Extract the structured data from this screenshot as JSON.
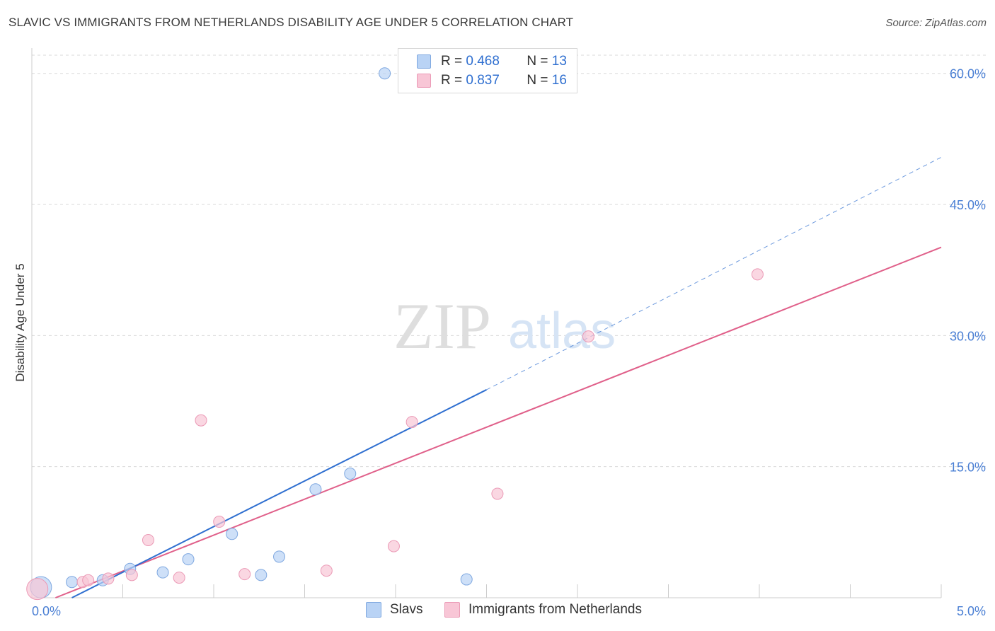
{
  "title": "SLAVIC VS IMMIGRANTS FROM NETHERLANDS DISABILITY AGE UNDER 5 CORRELATION CHART",
  "source": "Source: ZipAtlas.com",
  "watermark": {
    "zip": "ZIP",
    "atlas": "atlas"
  },
  "legend": {
    "slavs": {
      "r_label": "R =",
      "r_value": "0.468",
      "n_label": "N =",
      "n_value": "13"
    },
    "netherlands": {
      "r_label": "R =",
      "r_value": "0.837",
      "n_label": "N =",
      "n_value": "16"
    }
  },
  "bottom_legend": {
    "slavs": "Slavs",
    "netherlands": "Immigrants from Netherlands"
  },
  "colors": {
    "slavs_fill": "#b9d3f5",
    "slavs_stroke": "#7fa8e0",
    "slavs_line": "#2f6fd0",
    "nl_fill": "#f8c6d6",
    "nl_stroke": "#eb9ab6",
    "nl_line": "#e0608a",
    "tick": "#4a7fd4",
    "grid": "#d9d9d9"
  },
  "chart_data": {
    "type": "scatter",
    "title": "SLAVIC VS IMMIGRANTS FROM NETHERLANDS DISABILITY AGE UNDER 5 CORRELATION CHART",
    "xlabel": "",
    "ylabel": "Disability Age Under 5",
    "xlim": [
      0,
      5
    ],
    "ylim": [
      0,
      62
    ],
    "x_tick_labels": [
      "0.0%",
      "5.0%"
    ],
    "y_ticks": [
      15,
      30,
      45,
      60
    ],
    "y_tick_labels": [
      "15.0%",
      "30.0%",
      "45.0%",
      "60.0%"
    ],
    "series": [
      {
        "name": "Slavs",
        "points": [
          {
            "x": 0.05,
            "y": 1.2,
            "big": true
          },
          {
            "x": 0.22,
            "y": 1.8
          },
          {
            "x": 0.39,
            "y": 2.0
          },
          {
            "x": 0.54,
            "y": 3.3
          },
          {
            "x": 0.72,
            "y": 2.9
          },
          {
            "x": 0.86,
            "y": 4.4
          },
          {
            "x": 1.1,
            "y": 7.3
          },
          {
            "x": 1.26,
            "y": 2.6
          },
          {
            "x": 1.36,
            "y": 4.7
          },
          {
            "x": 1.56,
            "y": 12.4
          },
          {
            "x": 1.75,
            "y": 14.2
          },
          {
            "x": 1.94,
            "y": 60.0
          },
          {
            "x": 2.39,
            "y": 2.1
          }
        ],
        "trend": {
          "x0": 0.22,
          "y0": 0.0,
          "x1": 2.5,
          "y1": 23.8,
          "dash_to_x": 5.0,
          "dash_to_y": 50.4
        }
      },
      {
        "name": "Immigrants from Netherlands",
        "points": [
          {
            "x": 0.03,
            "y": 1.0,
            "big": true
          },
          {
            "x": 0.28,
            "y": 1.8
          },
          {
            "x": 0.31,
            "y": 2.0
          },
          {
            "x": 0.42,
            "y": 2.2
          },
          {
            "x": 0.55,
            "y": 2.6
          },
          {
            "x": 0.64,
            "y": 6.6
          },
          {
            "x": 0.81,
            "y": 2.3
          },
          {
            "x": 0.93,
            "y": 20.3
          },
          {
            "x": 1.03,
            "y": 8.7
          },
          {
            "x": 1.17,
            "y": 2.7
          },
          {
            "x": 1.62,
            "y": 3.1
          },
          {
            "x": 1.99,
            "y": 5.9
          },
          {
            "x": 2.09,
            "y": 20.1
          },
          {
            "x": 2.56,
            "y": 11.9
          },
          {
            "x": 3.06,
            "y": 29.9
          },
          {
            "x": 3.99,
            "y": 37.0
          }
        ],
        "trend": {
          "x0": 0.13,
          "y0": 0.0,
          "x1": 5.0,
          "y1": 40.1
        }
      }
    ]
  }
}
